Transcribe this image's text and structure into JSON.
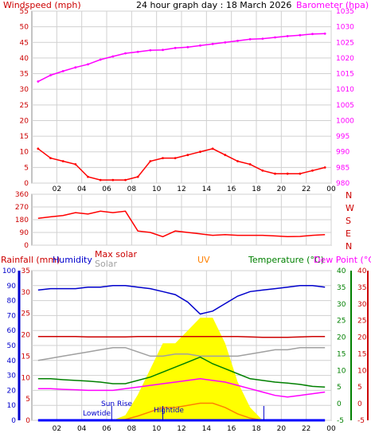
{
  "title": "24 hour graph day : 18 March 2026",
  "colors": {
    "wind": "#ff0000",
    "wind_dark": "#b00000",
    "barometer": "#ff00ff",
    "humidity": "#0000cc",
    "rain": "#0000ff",
    "max_solar": "#cc0000",
    "solar_text": "#a0a0a0",
    "uv": "#ff8000",
    "temperature": "#008000",
    "dew": "#ff0000",
    "direction": "#cc0000",
    "axis_left": "#cc0000",
    "grid": "#d0d0d0",
    "lowtide": "#0000cc",
    "solar_fill": "#ffff00"
  },
  "panel1": {
    "left_label": "Windspeed (mph)",
    "right_label": "Barometer (hpa)",
    "left_ticks": [
      "55",
      "50",
      "45",
      "40",
      "35",
      "30",
      "25",
      "20",
      "15",
      "10",
      "5",
      "0"
    ],
    "right_ticks": [
      "1035",
      "1030",
      "1025",
      "1020",
      "1015",
      "1010",
      "1005",
      "1000",
      "995",
      "990",
      "985",
      "980"
    ],
    "x_ticks": [
      "02",
      "04",
      "06",
      "08",
      "10",
      "12",
      "14",
      "16",
      "18",
      "20",
      "22",
      "00"
    ]
  },
  "panel2": {
    "left_ticks": [
      "360",
      "270",
      "180",
      "90",
      "0"
    ],
    "right_letters": [
      "N",
      "W",
      "S",
      "E",
      "N"
    ]
  },
  "panel3": {
    "rain_label": "Rainfall (mm)",
    "humidity_label": "Humidity",
    "max_solar_label": "Max solar",
    "solar_label": "Solar",
    "uv_label": "UV",
    "temperature_label": "Temperature (°C)",
    "dew_label": "Dew Point (°C)",
    "humidity_ticks": [
      "100",
      "90",
      "80",
      "70",
      "60",
      "50",
      "40",
      "30",
      "20",
      "10",
      "0"
    ],
    "rain_ticks": [
      "35",
      "30",
      "25",
      "20",
      "15",
      "10",
      "5",
      "0"
    ],
    "temp_right_ticks": [
      "40",
      "35",
      "30",
      "25",
      "20",
      "15",
      "10",
      "5",
      "0",
      "-5"
    ],
    "annotations": {
      "lowtide": "Lowtide",
      "sunrise": "Sun Rise",
      "hightide": "Hightide"
    }
  },
  "chart_data": [
    {
      "type": "line",
      "title": "24 hour graph day : 18 March 2026",
      "x": [
        "01",
        "02",
        "03",
        "04",
        "05",
        "06",
        "07",
        "08",
        "09",
        "10",
        "11",
        "12",
        "13",
        "14",
        "15",
        "16",
        "17",
        "18",
        "19",
        "20",
        "21",
        "22",
        "23",
        "00"
      ],
      "xlabel": "",
      "ylabel": "Windspeed (mph)",
      "ylim": [
        0,
        55
      ],
      "y2label": "Barometer (hpa)",
      "y2lim": [
        980,
        1035
      ],
      "series": [
        {
          "name": "Windspeed (mph)",
          "axis": "left",
          "values": [
            11,
            8,
            7,
            6,
            2,
            1,
            1,
            1,
            2,
            7,
            8,
            8,
            9,
            10,
            11,
            9,
            7,
            6,
            4,
            3,
            3,
            3,
            4,
            5
          ]
        },
        {
          "name": "Barometer (hpa)",
          "axis": "right",
          "values": [
            1012.5,
            1014.5,
            1015.8,
            1017,
            1018,
            1019.5,
            1020.5,
            1021.5,
            1022,
            1022.5,
            1022.6,
            1023.2,
            1023.5,
            1024,
            1024.5,
            1025,
            1025.5,
            1026,
            1026.2,
            1026.6,
            1027,
            1027.3,
            1027.7,
            1027.8
          ]
        }
      ]
    },
    {
      "type": "line",
      "title": "",
      "x": [
        "01",
        "02",
        "03",
        "04",
        "05",
        "06",
        "07",
        "08",
        "09",
        "10",
        "11",
        "12",
        "13",
        "14",
        "15",
        "16",
        "17",
        "18",
        "19",
        "20",
        "21",
        "22",
        "23",
        "00"
      ],
      "ylabel": "",
      "ylim": [
        0,
        360
      ],
      "series": [
        {
          "name": "",
          "values": [
            190,
            200,
            210,
            230,
            220,
            240,
            230,
            240,
            100,
            90,
            60,
            100,
            90,
            80,
            70,
            75,
            70,
            70,
            70,
            65,
            60,
            62,
            70,
            75
          ]
        }
      ]
    },
    {
      "type": "line",
      "title": "",
      "x": [
        "01",
        "02",
        "03",
        "04",
        "05",
        "06",
        "07",
        "08",
        "09",
        "10",
        "11",
        "12",
        "13",
        "14",
        "15",
        "16",
        "17",
        "18",
        "19",
        "20",
        "21",
        "22",
        "23",
        "00"
      ],
      "series": [
        {
          "name": "Humidity",
          "axis": "humidity",
          "values": [
            87,
            88,
            88,
            88,
            89,
            89,
            90,
            90,
            89,
            88,
            86,
            84,
            79,
            71,
            73,
            78,
            83,
            86,
            87,
            88,
            89,
            90,
            90,
            89
          ]
        },
        {
          "name": "Max solar",
          "axis": "rain",
          "values": [
            19.6,
            19.6,
            19.6,
            19.6,
            19.5,
            19.5,
            19.5,
            19.5,
            19.6,
            19.6,
            19.6,
            19.6,
            19.6,
            19.6,
            19.6,
            19.6,
            19.6,
            19.5,
            19.4,
            19.4,
            19.4,
            19.5,
            19.6,
            19.6
          ]
        },
        {
          "name": "Solar",
          "axis": "rain",
          "values": [
            14,
            14.5,
            15,
            15.5,
            16,
            16.5,
            17,
            17,
            16,
            15,
            15,
            15.5,
            15.5,
            15,
            15,
            15,
            15,
            15.5,
            16,
            16.5,
            16.5,
            17,
            17,
            17
          ]
        },
        {
          "name": "Temperature (°C)",
          "axis": "temperature",
          "values": [
            7.5,
            7.5,
            7.2,
            7,
            6.8,
            6.5,
            6,
            6,
            7,
            8,
            9.5,
            11,
            12.5,
            14,
            12,
            10.5,
            9,
            7.5,
            7,
            6.5,
            6.2,
            5.8,
            5.2,
            5
          ]
        },
        {
          "name": "Dew Point (°C)",
          "axis": "temperature",
          "values": [
            4.5,
            4.5,
            4.3,
            4.2,
            4,
            4,
            4,
            4.5,
            5,
            5.5,
            6,
            6.5,
            7,
            7.5,
            7,
            6.5,
            5.5,
            4.5,
            3.5,
            2.5,
            2,
            2.5,
            3,
            3.5
          ]
        },
        {
          "name": "UV",
          "axis": "rain",
          "values": [
            0,
            0,
            0,
            0,
            0,
            0,
            0,
            0.2,
            1,
            2,
            3,
            3,
            3.5,
            4,
            4,
            3,
            1.5,
            0.5,
            0,
            0,
            0,
            0,
            0,
            0
          ]
        },
        {
          "name": "Rainfall (mm)",
          "axis": "rain",
          "values": [
            0,
            0,
            0,
            0,
            0,
            0,
            0,
            0,
            0,
            0,
            0,
            0,
            0,
            0,
            0,
            0,
            0,
            0,
            0,
            0,
            0,
            0,
            0,
            0
          ]
        }
      ],
      "humidity_ylim": [
        0,
        100
      ],
      "rain_ylim": [
        0,
        35
      ],
      "temperature_ylim": [
        -5,
        40
      ]
    }
  ]
}
